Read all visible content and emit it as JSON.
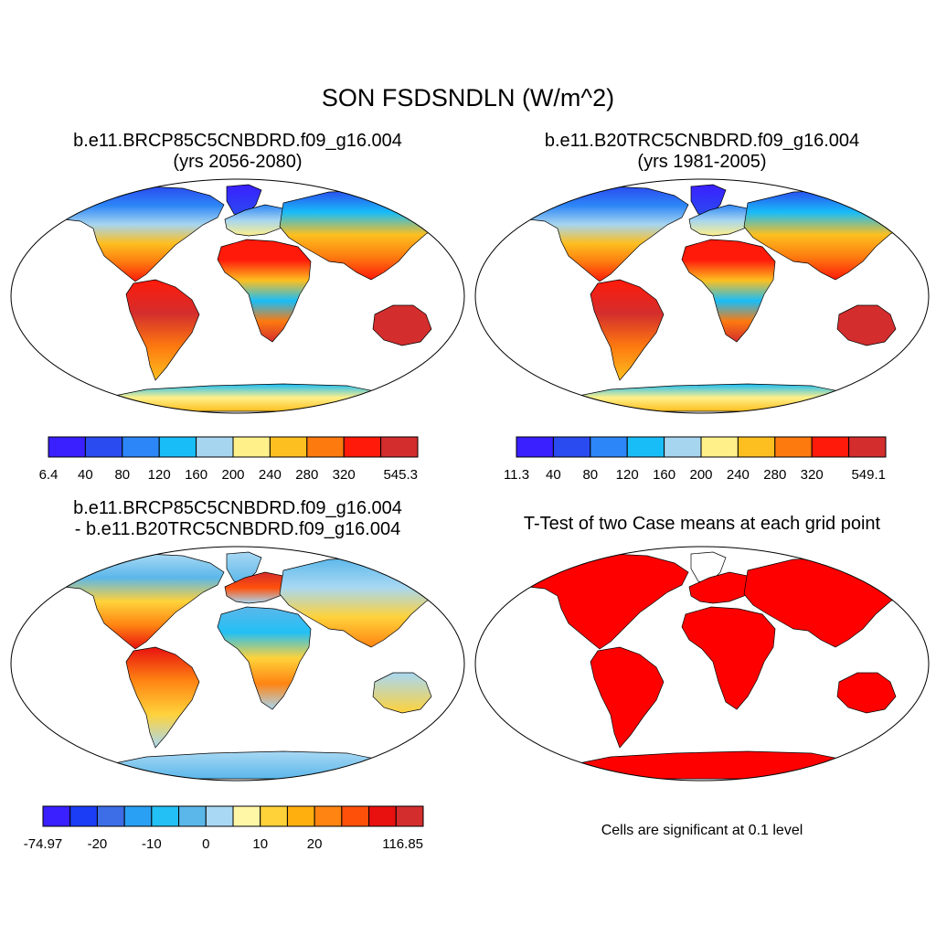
{
  "figure": {
    "title": "SON FSDSNDLN (W/m^2)",
    "panels": [
      {
        "line1": "b.e11.BRCP85C5CNBDRD.f09_g16.004",
        "line2": "(yrs 2056-2080)",
        "colorbar": {
          "colors": [
            "#3a1fff",
            "#2a4bf0",
            "#2c86f7",
            "#18bdf8",
            "#a6d5f0",
            "#fff08a",
            "#fdbf1f",
            "#fd7a0f",
            "#ff1a0a",
            "#d42d2d"
          ],
          "labels": [
            "6.4",
            "40",
            "80",
            "120",
            "160",
            "200",
            "240",
            "280",
            "320",
            "545.3"
          ]
        }
      },
      {
        "line1": "b.e11.B20TRC5CNBDRD.f09_g16.004",
        "line2": "(yrs 1981-2005)",
        "colorbar": {
          "colors": [
            "#3a1fff",
            "#2a4bf0",
            "#2c86f7",
            "#18bdf8",
            "#a6d5f0",
            "#fff08a",
            "#fdbf1f",
            "#fd7a0f",
            "#ff1a0a",
            "#d42d2d"
          ],
          "labels": [
            "11.3",
            "40",
            "80",
            "120",
            "160",
            "200",
            "240",
            "280",
            "320",
            "549.1"
          ]
        }
      },
      {
        "line1": "b.e11.BRCP85C5CNBDRD.f09_g16.004",
        "line2": "- b.e11.B20TRC5CNBDRD.f09_g16.004",
        "colorbar": {
          "colors": [
            "#3a1fff",
            "#1a3df5",
            "#3d6ee8",
            "#2aa0f5",
            "#22c0f5",
            "#5bb7ea",
            "#a8d8f3",
            "#fff6a6",
            "#ffd23a",
            "#ffb00f",
            "#ff8412",
            "#ff500a",
            "#e8110f",
            "#d42d2d"
          ],
          "labels": [
            "-74.97",
            "",
            "-20",
            "",
            "-10",
            "",
            "0",
            "",
            "10",
            "",
            "20",
            "",
            "",
            "116.85"
          ]
        }
      },
      {
        "line1": "T-Test of two Case means at each grid point",
        "line2": "",
        "note": "Cells are significant at 0.1 level"
      }
    ]
  }
}
